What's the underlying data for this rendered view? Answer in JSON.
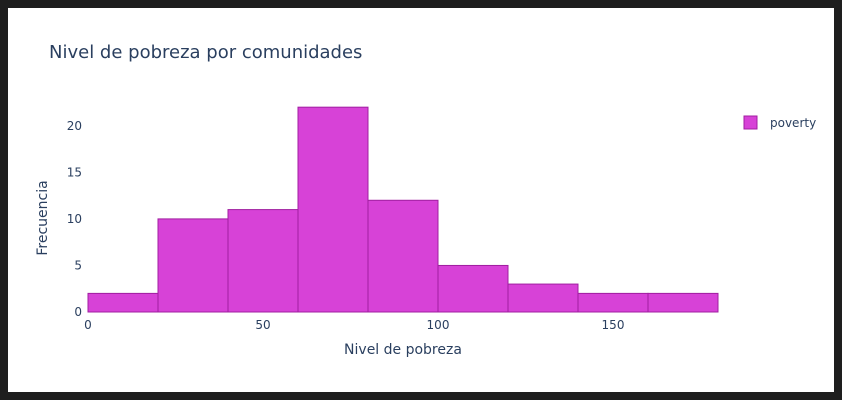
{
  "chart_data": {
    "type": "bar",
    "title": "Nivel de pobreza por comunidades",
    "xlabel": "Nivel de pobreza",
    "ylabel": "Frecuencia",
    "xlim": [
      0,
      180
    ],
    "ylim": [
      0,
      23.2
    ],
    "x_ticks": [
      0,
      50,
      100,
      150
    ],
    "y_ticks": [
      0,
      5,
      10,
      15,
      20
    ],
    "bin_width": 20,
    "bins": [
      {
        "start": 0,
        "end": 20,
        "count": 2
      },
      {
        "start": 20,
        "end": 40,
        "count": 10
      },
      {
        "start": 40,
        "end": 60,
        "count": 11
      },
      {
        "start": 60,
        "end": 80,
        "count": 22
      },
      {
        "start": 80,
        "end": 100,
        "count": 12
      },
      {
        "start": 100,
        "end": 120,
        "count": 5
      },
      {
        "start": 120,
        "end": 140,
        "count": 3
      },
      {
        "start": 140,
        "end": 160,
        "count": 2
      },
      {
        "start": 160,
        "end": 180,
        "count": 2
      }
    ],
    "series": [
      {
        "name": "poverty",
        "color": "#d742d7",
        "edge_color": "#a01fa0"
      }
    ],
    "legend_position": "top-right",
    "grid": false
  }
}
